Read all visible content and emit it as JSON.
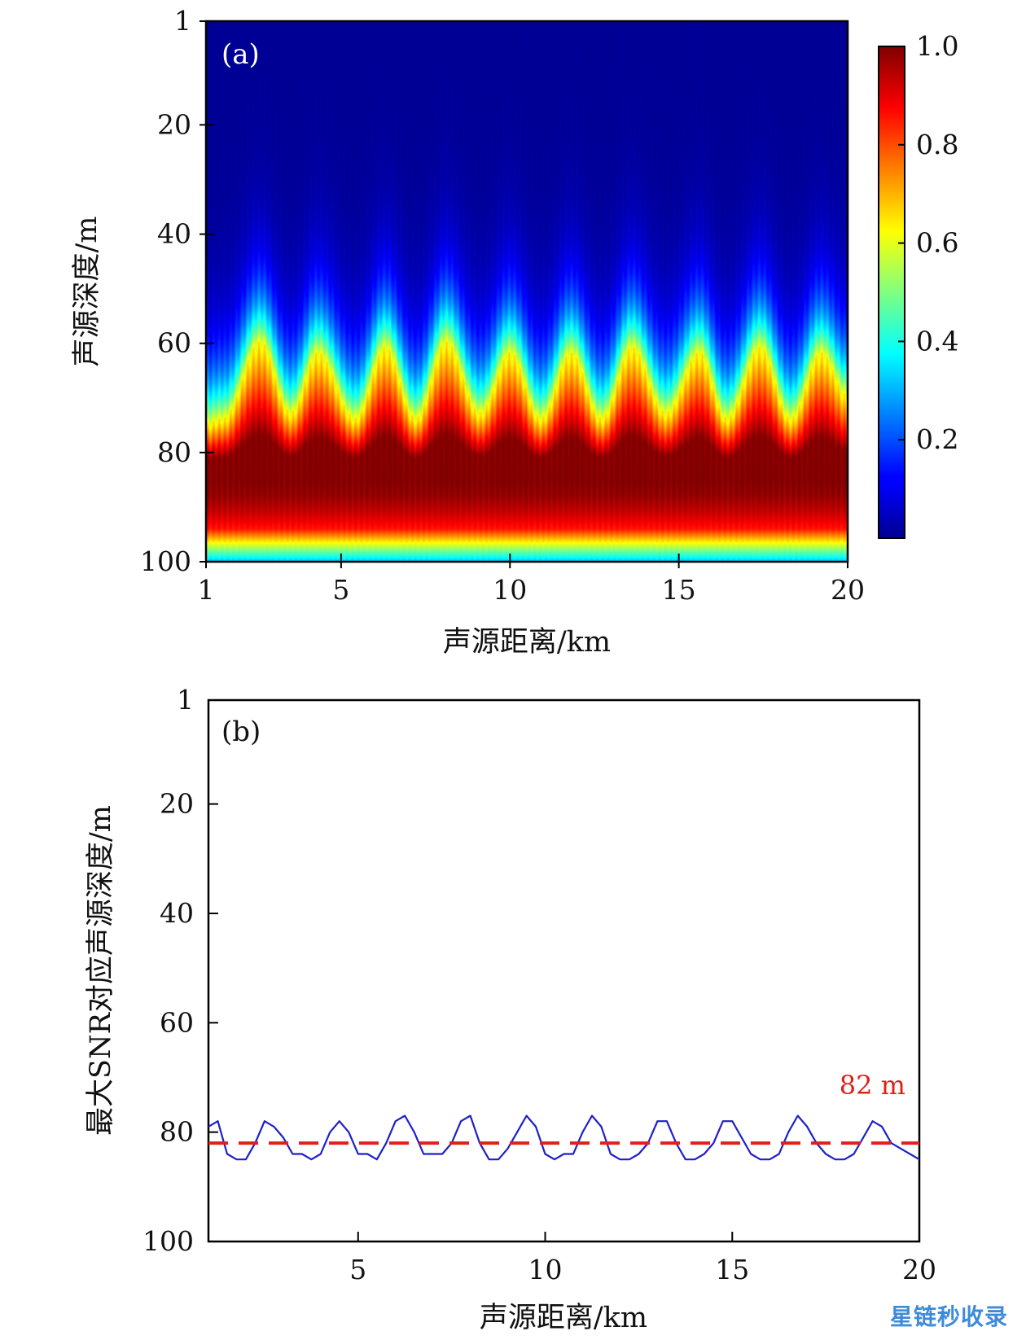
{
  "chart_data": [
    {
      "type": "heatmap",
      "panel_label": "(a)",
      "xlabel": "声源距离/km",
      "ylabel": "声源深度/m",
      "xlim": [
        1,
        20
      ],
      "ylim": [
        1,
        100
      ],
      "y_inverted": true,
      "xticks": [
        1,
        5,
        10,
        15,
        20
      ],
      "yticks": [
        1,
        20,
        40,
        60,
        80,
        100
      ],
      "colorbar": {
        "ticks": [
          0.2,
          0.4,
          0.6,
          0.8,
          1.0
        ],
        "tick_labels": [
          "0.2",
          "0.4",
          "0.6",
          "0.8",
          "1.0"
        ],
        "range": [
          0,
          1
        ],
        "colormap": "jet"
      },
      "pattern": {
        "peak_depths_m": [
          [
            1,
            75
          ],
          [
            2.6,
            60
          ],
          [
            4.3,
            62
          ],
          [
            6.3,
            61
          ],
          [
            8.1,
            60
          ],
          [
            10.0,
            62
          ],
          [
            11.8,
            62
          ],
          [
            13.6,
            61
          ],
          [
            15.6,
            62
          ],
          [
            17.4,
            61
          ],
          [
            19.2,
            62
          ],
          [
            20,
            70
          ]
        ],
        "trough_depths_m": [
          [
            1.5,
            74
          ],
          [
            3.5,
            73
          ],
          [
            5.4,
            74
          ],
          [
            7.2,
            74
          ],
          [
            9.1,
            73
          ],
          [
            10.9,
            74
          ],
          [
            12.7,
            74
          ],
          [
            14.6,
            73
          ],
          [
            16.4,
            74
          ],
          [
            18.3,
            74
          ]
        ],
        "max_band_depth_m": 84,
        "bottom_fade_depth_m": 94
      }
    },
    {
      "type": "line",
      "panel_label": "(b)",
      "xlabel": "声源距离/km",
      "ylabel": "最大SNR对应声源深度/m",
      "xlim": [
        1,
        20
      ],
      "ylim": [
        1,
        100
      ],
      "y_inverted": true,
      "xticks": [
        5,
        10,
        15,
        20
      ],
      "yticks": [
        1,
        20,
        40,
        60,
        80,
        100
      ],
      "series": [
        {
          "color": "#1f1fcc",
          "x": [
            1.0,
            1.25,
            1.5,
            1.75,
            2.0,
            2.25,
            2.5,
            2.75,
            3.0,
            3.25,
            3.5,
            3.75,
            4.0,
            4.25,
            4.5,
            4.75,
            5.0,
            5.25,
            5.5,
            5.75,
            6.0,
            6.25,
            6.5,
            6.75,
            7.0,
            7.25,
            7.5,
            7.75,
            8.0,
            8.25,
            8.5,
            8.75,
            9.0,
            9.25,
            9.5,
            9.75,
            10.0,
            10.25,
            10.5,
            10.75,
            11.0,
            11.25,
            11.5,
            11.75,
            12.0,
            12.25,
            12.5,
            12.75,
            13.0,
            13.25,
            13.5,
            13.75,
            14.0,
            14.25,
            14.5,
            14.75,
            15.0,
            15.25,
            15.5,
            15.75,
            16.0,
            16.25,
            16.5,
            16.75,
            17.0,
            17.25,
            17.5,
            17.75,
            18.0,
            18.25,
            18.5,
            18.75,
            19.0,
            19.25,
            19.5,
            19.75,
            20.0
          ],
          "y": [
            79,
            78,
            84,
            85,
            85,
            82,
            78,
            79,
            81,
            84,
            84,
            85,
            84,
            80,
            78,
            80,
            84,
            84,
            85,
            82,
            78,
            77,
            80,
            84,
            84,
            84,
            82,
            78,
            77,
            82,
            85,
            85,
            83,
            80,
            77,
            79,
            84,
            85,
            84,
            84,
            80,
            77,
            79,
            84,
            85,
            85,
            84,
            82,
            78,
            78,
            82,
            85,
            85,
            84,
            82,
            78,
            78,
            81,
            84,
            85,
            85,
            84,
            80,
            77,
            79,
            82,
            84,
            85,
            85,
            84,
            81,
            78,
            79,
            82,
            83,
            84,
            85
          ]
        },
        {
          "color": "#e0201c",
          "style": "dashed",
          "x": [
            1,
            20
          ],
          "y": [
            82,
            82
          ]
        }
      ],
      "annotation": {
        "text": "82 m",
        "color": "#e0201c"
      }
    }
  ],
  "watermark": "星链秒收录"
}
